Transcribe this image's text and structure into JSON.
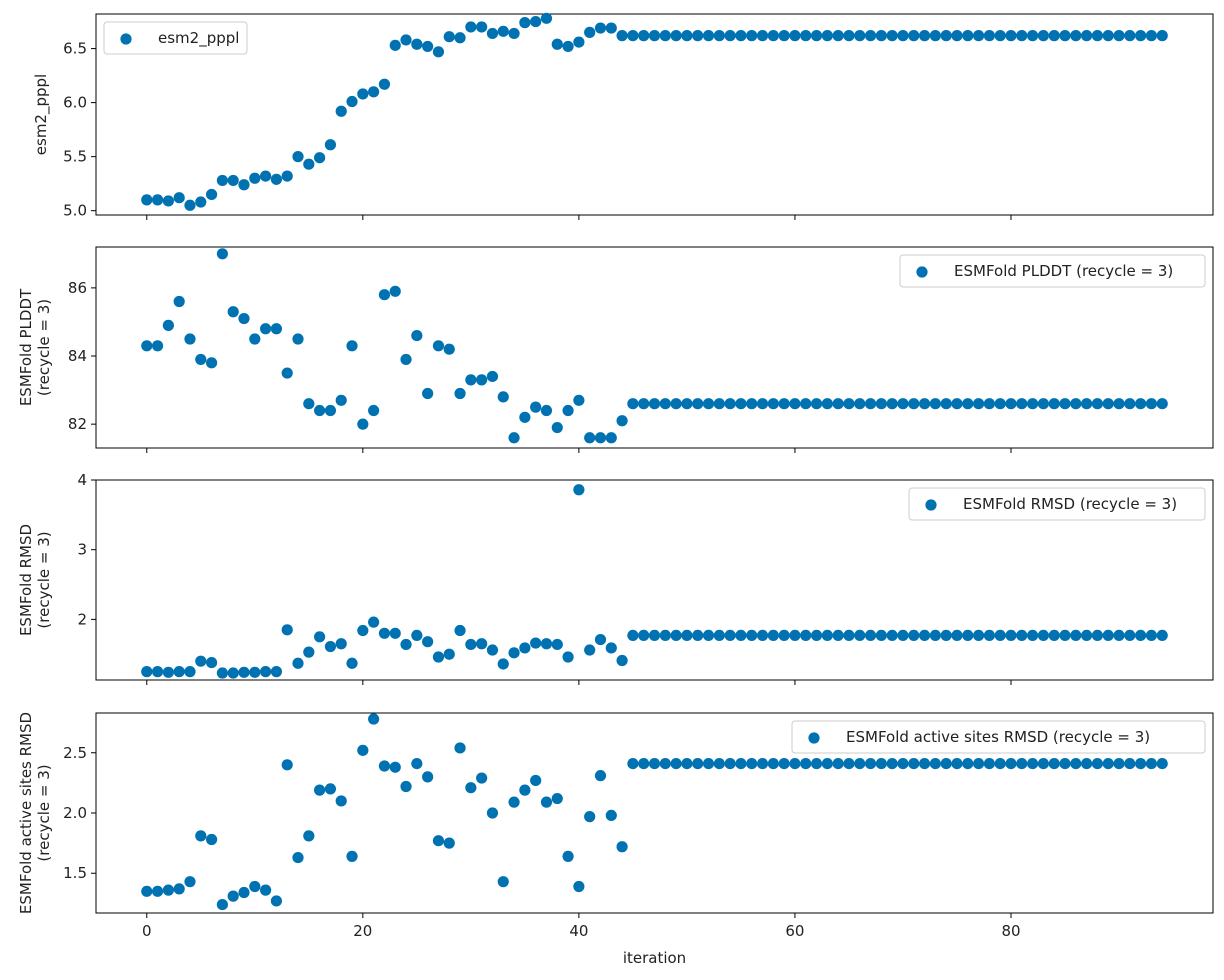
{
  "chart_data": [
    {
      "type": "scatter",
      "ylabel": "esm2_pppl",
      "xlabel": "",
      "xlim": [
        -4.7,
        98.7
      ],
      "ylim": [
        4.96,
        6.82
      ],
      "xticks": [
        0,
        20,
        40,
        60,
        80
      ],
      "xtick_labels": [],
      "yticks": [
        5.0,
        5.5,
        6.0,
        6.5
      ],
      "ytick_labels": [
        "5.0",
        "5.5",
        "6.0",
        "6.5"
      ],
      "legend_position": "upper left",
      "color": "#0072b2",
      "series": [
        {
          "name": "esm2_pppl",
          "x": [
            0,
            1,
            2,
            3,
            4,
            5,
            6,
            7,
            8,
            9,
            10,
            11,
            12,
            13,
            14,
            15,
            16,
            17,
            18,
            19,
            20,
            21,
            22,
            23,
            24,
            25,
            26,
            27,
            28,
            29,
            30,
            31,
            32,
            33,
            34,
            35,
            36,
            37,
            38,
            39,
            40,
            41,
            42,
            43,
            44,
            45,
            46,
            47,
            48,
            49,
            50,
            51,
            52,
            53,
            54,
            55,
            56,
            57,
            58,
            59,
            60,
            61,
            62,
            63,
            64,
            65,
            66,
            67,
            68,
            69,
            70,
            71,
            72,
            73,
            74,
            75,
            76,
            77,
            78,
            79,
            80,
            81,
            82,
            83,
            84,
            85,
            86,
            87,
            88,
            89,
            90,
            91,
            92,
            93,
            94
          ],
          "y": [
            5.1,
            5.1,
            5.09,
            5.12,
            5.05,
            5.08,
            5.15,
            5.28,
            5.28,
            5.24,
            5.3,
            5.32,
            5.29,
            5.32,
            5.5,
            5.43,
            5.49,
            5.61,
            5.92,
            6.01,
            6.08,
            6.1,
            6.17,
            6.53,
            6.58,
            6.54,
            6.52,
            6.47,
            6.61,
            6.6,
            6.7,
            6.7,
            6.64,
            6.66,
            6.64,
            6.74,
            6.75,
            6.78,
            6.54,
            6.52,
            6.56,
            6.65,
            6.69,
            6.69,
            6.62,
            6.62,
            6.62,
            6.62,
            6.62,
            6.62,
            6.62,
            6.62,
            6.62,
            6.62,
            6.62,
            6.62,
            6.62,
            6.62,
            6.62,
            6.62,
            6.62,
            6.62,
            6.62,
            6.62,
            6.62,
            6.62,
            6.62,
            6.62,
            6.62,
            6.62,
            6.62,
            6.62,
            6.62,
            6.62,
            6.62,
            6.62,
            6.62,
            6.62,
            6.62,
            6.62,
            6.62,
            6.62,
            6.62,
            6.62,
            6.62,
            6.62,
            6.62,
            6.62,
            6.62,
            6.62,
            6.62,
            6.62,
            6.62,
            6.62,
            6.62
          ]
        }
      ]
    },
    {
      "type": "scatter",
      "ylabel": "ESMFold PLDDT\n(recycle = 3)",
      "xlabel": "",
      "xlim": [
        -4.7,
        98.7
      ],
      "ylim": [
        81.3,
        87.2
      ],
      "xticks": [
        0,
        20,
        40,
        60,
        80
      ],
      "xtick_labels": [],
      "yticks": [
        82,
        84,
        86
      ],
      "ytick_labels": [
        "82",
        "84",
        "86"
      ],
      "legend_position": "upper right",
      "color": "#0072b2",
      "series": [
        {
          "name": "ESMFold PLDDT (recycle = 3)",
          "x": [
            0,
            1,
            2,
            3,
            4,
            5,
            6,
            7,
            8,
            9,
            10,
            11,
            12,
            13,
            14,
            15,
            16,
            17,
            18,
            19,
            20,
            21,
            22,
            23,
            24,
            25,
            26,
            27,
            28,
            29,
            30,
            31,
            32,
            33,
            34,
            35,
            36,
            37,
            38,
            39,
            40,
            41,
            42,
            43,
            44,
            45,
            46,
            47,
            48,
            49,
            50,
            51,
            52,
            53,
            54,
            55,
            56,
            57,
            58,
            59,
            60,
            61,
            62,
            63,
            64,
            65,
            66,
            67,
            68,
            69,
            70,
            71,
            72,
            73,
            74,
            75,
            76,
            77,
            78,
            79,
            80,
            81,
            82,
            83,
            84,
            85,
            86,
            87,
            88,
            89,
            90,
            91,
            92,
            93,
            94
          ],
          "y": [
            84.3,
            84.3,
            84.9,
            85.6,
            84.5,
            83.9,
            83.8,
            87.0,
            85.3,
            85.1,
            84.5,
            84.8,
            84.8,
            83.5,
            84.5,
            82.6,
            82.4,
            82.4,
            82.7,
            84.3,
            82.0,
            82.4,
            85.8,
            85.9,
            83.9,
            84.6,
            82.9,
            84.3,
            84.2,
            82.9,
            83.3,
            83.3,
            83.4,
            82.8,
            81.6,
            82.2,
            82.5,
            82.4,
            81.9,
            82.4,
            82.7,
            81.6,
            81.6,
            81.6,
            82.1,
            82.6,
            82.6,
            82.6,
            82.6,
            82.6,
            82.6,
            82.6,
            82.6,
            82.6,
            82.6,
            82.6,
            82.6,
            82.6,
            82.6,
            82.6,
            82.6,
            82.6,
            82.6,
            82.6,
            82.6,
            82.6,
            82.6,
            82.6,
            82.6,
            82.6,
            82.6,
            82.6,
            82.6,
            82.6,
            82.6,
            82.6,
            82.6,
            82.6,
            82.6,
            82.6,
            82.6,
            82.6,
            82.6,
            82.6,
            82.6,
            82.6,
            82.6,
            82.6,
            82.6,
            82.6,
            82.6,
            82.6,
            82.6,
            82.6,
            82.6
          ]
        }
      ]
    },
    {
      "type": "scatter",
      "ylabel": "ESMFold RMSD\n(recycle = 3)",
      "xlabel": "",
      "xlim": [
        -4.7,
        98.7
      ],
      "ylim": [
        1.13,
        4.0
      ],
      "xticks": [
        0,
        20,
        40,
        60,
        80
      ],
      "xtick_labels": [],
      "yticks": [
        2,
        3,
        4
      ],
      "ytick_labels": [
        "2",
        "3",
        "4"
      ],
      "legend_position": "upper right",
      "color": "#0072b2",
      "series": [
        {
          "name": "ESMFold RMSD (recycle = 3)",
          "x": [
            0,
            1,
            2,
            3,
            4,
            5,
            6,
            7,
            8,
            9,
            10,
            11,
            12,
            13,
            14,
            15,
            16,
            17,
            18,
            19,
            20,
            21,
            22,
            23,
            24,
            25,
            26,
            27,
            28,
            29,
            30,
            31,
            32,
            33,
            34,
            35,
            36,
            37,
            38,
            39,
            40,
            41,
            42,
            43,
            44,
            45,
            46,
            47,
            48,
            49,
            50,
            51,
            52,
            53,
            54,
            55,
            56,
            57,
            58,
            59,
            60,
            61,
            62,
            63,
            64,
            65,
            66,
            67,
            68,
            69,
            70,
            71,
            72,
            73,
            74,
            75,
            76,
            77,
            78,
            79,
            80,
            81,
            82,
            83,
            84,
            85,
            86,
            87,
            88,
            89,
            90,
            91,
            92,
            93,
            94
          ],
          "y": [
            1.25,
            1.25,
            1.24,
            1.25,
            1.25,
            1.4,
            1.38,
            1.23,
            1.23,
            1.24,
            1.24,
            1.25,
            1.25,
            1.85,
            1.37,
            1.53,
            1.75,
            1.61,
            1.65,
            1.37,
            1.84,
            1.96,
            1.8,
            1.8,
            1.64,
            1.77,
            1.68,
            1.46,
            1.5,
            1.84,
            1.64,
            1.65,
            1.56,
            1.36,
            1.52,
            1.59,
            1.66,
            1.65,
            1.64,
            1.46,
            3.86,
            1.56,
            1.71,
            1.59,
            1.41,
            1.77,
            1.77,
            1.77,
            1.77,
            1.77,
            1.77,
            1.77,
            1.77,
            1.77,
            1.77,
            1.77,
            1.77,
            1.77,
            1.77,
            1.77,
            1.77,
            1.77,
            1.77,
            1.77,
            1.77,
            1.77,
            1.77,
            1.77,
            1.77,
            1.77,
            1.77,
            1.77,
            1.77,
            1.77,
            1.77,
            1.77,
            1.77,
            1.77,
            1.77,
            1.77,
            1.77,
            1.77,
            1.77,
            1.77,
            1.77,
            1.77,
            1.77,
            1.77,
            1.77,
            1.77,
            1.77,
            1.77,
            1.77,
            1.77,
            1.77
          ]
        }
      ]
    },
    {
      "type": "scatter",
      "ylabel": "ESMFold active sites RMSD\n(recycle = 3)",
      "xlabel": "iteration",
      "xlim": [
        -4.7,
        98.7
      ],
      "ylim": [
        1.17,
        2.83
      ],
      "xticks": [
        0,
        20,
        40,
        60,
        80
      ],
      "xtick_labels": [
        "0",
        "20",
        "40",
        "60",
        "80"
      ],
      "yticks": [
        1.5,
        2.0,
        2.5
      ],
      "ytick_labels": [
        "1.5",
        "2.0",
        "2.5"
      ],
      "legend_position": "upper right",
      "color": "#0072b2",
      "series": [
        {
          "name": "ESMFold active sites RMSD (recycle = 3)",
          "x": [
            0,
            1,
            2,
            3,
            4,
            5,
            6,
            7,
            8,
            9,
            10,
            11,
            12,
            13,
            14,
            15,
            16,
            17,
            18,
            19,
            20,
            21,
            22,
            23,
            24,
            25,
            26,
            27,
            28,
            29,
            30,
            31,
            32,
            33,
            34,
            35,
            36,
            37,
            38,
            39,
            40,
            41,
            42,
            43,
            44,
            45,
            46,
            47,
            48,
            49,
            50,
            51,
            52,
            53,
            54,
            55,
            56,
            57,
            58,
            59,
            60,
            61,
            62,
            63,
            64,
            65,
            66,
            67,
            68,
            69,
            70,
            71,
            72,
            73,
            74,
            75,
            76,
            77,
            78,
            79,
            80,
            81,
            82,
            83,
            84,
            85,
            86,
            87,
            88,
            89,
            90,
            91,
            92,
            93,
            94
          ],
          "y": [
            1.35,
            1.35,
            1.36,
            1.37,
            1.43,
            1.81,
            1.78,
            1.24,
            1.31,
            1.34,
            1.39,
            1.36,
            1.27,
            2.4,
            1.63,
            1.81,
            2.19,
            2.2,
            2.1,
            1.64,
            2.52,
            2.78,
            2.39,
            2.38,
            2.22,
            2.41,
            2.3,
            1.77,
            1.75,
            2.54,
            2.21,
            2.29,
            2.0,
            1.43,
            2.09,
            2.19,
            2.27,
            2.09,
            2.12,
            1.64,
            1.39,
            1.97,
            2.31,
            1.98,
            1.72,
            2.41,
            2.41,
            2.41,
            2.41,
            2.41,
            2.41,
            2.41,
            2.41,
            2.41,
            2.41,
            2.41,
            2.41,
            2.41,
            2.41,
            2.41,
            2.41,
            2.41,
            2.41,
            2.41,
            2.41,
            2.41,
            2.41,
            2.41,
            2.41,
            2.41,
            2.41,
            2.41,
            2.41,
            2.41,
            2.41,
            2.41,
            2.41,
            2.41,
            2.41,
            2.41,
            2.41,
            2.41,
            2.41,
            2.41,
            2.41,
            2.41,
            2.41,
            2.41,
            2.41,
            2.41,
            2.41,
            2.41,
            2.41,
            2.41,
            2.41
          ]
        }
      ]
    }
  ]
}
